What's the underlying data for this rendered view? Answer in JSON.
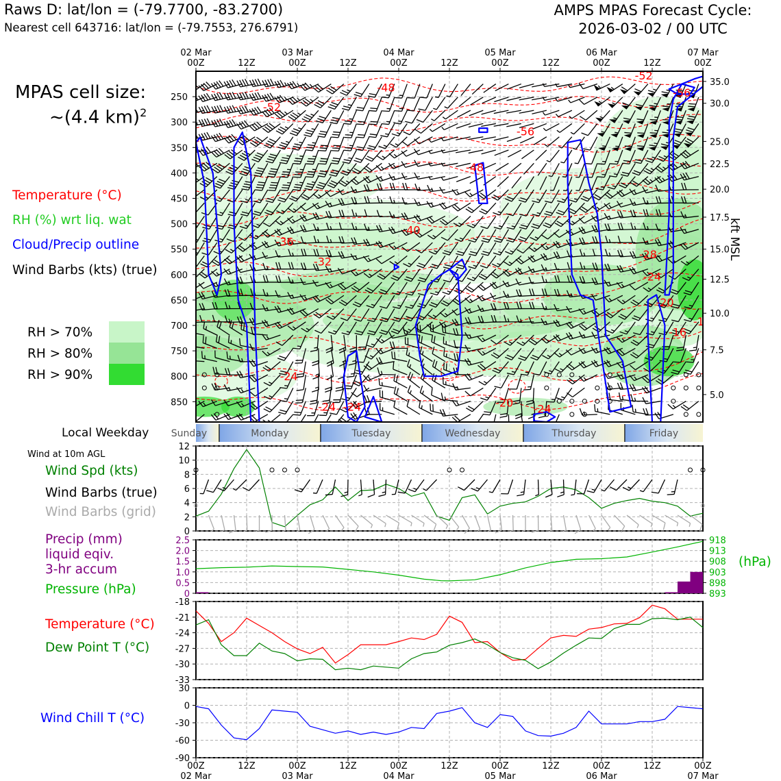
{
  "header": {
    "left_line1": "Raws D: lat/lon = (-79.7700, -83.2700)",
    "left_line2": "Nearest cell 643716: lat/lon = (-79.7553, 276.6791)",
    "right_line1": "AMPS MPAS Forecast Cycle:",
    "right_line2": "2026-03-02 / 00 UTC"
  },
  "cell_size": {
    "line1": "MPAS cell size:",
    "line2": "~(4.4 km)",
    "sup": "2"
  },
  "legend": {
    "temperature": "Temperature (°C)",
    "rh": "RH (%) wrt liq. wat",
    "cloud": "Cloud/Precip outline",
    "barbs": "Wind Barbs (kts) (true)",
    "rh70": "RH > 70%",
    "rh80": "RH > 80%",
    "rh90": "RH > 90%"
  },
  "colors": {
    "rh70": "#c8f5c8",
    "rh80": "#96e496",
    "rh90": "#32dc32",
    "temp": "#ff0000",
    "cloud": "#0000ff",
    "dew": "#008000",
    "precip": "#800080",
    "pressure": "#00b400",
    "chill": "#0000ff",
    "grey_barb": "#aaaaaa"
  },
  "time_axis": {
    "top_ticks": [
      {
        "date": "02 Mar",
        "hour": "00Z"
      },
      {
        "date": "",
        "hour": "12Z"
      },
      {
        "date": "03 Mar",
        "hour": "00Z"
      },
      {
        "date": "",
        "hour": "12Z"
      },
      {
        "date": "04 Mar",
        "hour": "00Z"
      },
      {
        "date": "",
        "hour": "12Z"
      },
      {
        "date": "05 Mar",
        "hour": "00Z"
      },
      {
        "date": "",
        "hour": "12Z"
      },
      {
        "date": "06 Mar",
        "hour": "00Z"
      },
      {
        "date": "",
        "hour": "12Z"
      },
      {
        "date": "07 Mar",
        "hour": "00Z"
      }
    ],
    "hours_total": 120
  },
  "cross_section": {
    "pressure_ticks": [
      250,
      300,
      350,
      400,
      450,
      500,
      550,
      600,
      650,
      700,
      750,
      800,
      850
    ],
    "altitude_ticks": [
      "35.0",
      "30.0",
      "25.0",
      "22.5",
      "20.0",
      "17.5",
      "15.0",
      "12.5",
      "10.0",
      "7.5",
      "5.0"
    ],
    "altitude_pressures": [
      220,
      263,
      338,
      382,
      432,
      487,
      550,
      609,
      676,
      748,
      836
    ],
    "altitude_label": "kft MSL",
    "pressure_range": [
      200,
      890
    ],
    "temp_labels": [
      {
        "t": 45,
        "p": 240,
        "label": "-48"
      },
      {
        "t": 18,
        "p": 278,
        "label": "-52"
      },
      {
        "t": 78,
        "p": 326,
        "label": "-56"
      },
      {
        "t": 66,
        "p": 397,
        "label": "-48"
      },
      {
        "t": 51,
        "p": 520,
        "label": "-40"
      },
      {
        "t": 21,
        "p": 543,
        "label": "-36"
      },
      {
        "t": 30,
        "p": 582,
        "label": "-32"
      },
      {
        "t": 106,
        "p": 216,
        "label": "-52"
      },
      {
        "t": 115,
        "p": 250,
        "label": "-56"
      },
      {
        "t": 107,
        "p": 568,
        "label": "-28"
      },
      {
        "t": 108,
        "p": 612,
        "label": "-24"
      },
      {
        "t": 111,
        "p": 662,
        "label": "-20"
      },
      {
        "t": 114,
        "p": 721,
        "label": "-16"
      },
      {
        "t": 119,
        "p": 700,
        "label": "-1"
      },
      {
        "t": 22,
        "p": 808,
        "label": "-24"
      },
      {
        "t": 31,
        "p": 868,
        "label": "-24"
      },
      {
        "t": 37,
        "p": 868,
        "label": "-24"
      },
      {
        "t": 73,
        "p": 860,
        "label": "-20"
      },
      {
        "t": 82,
        "p": 872,
        "label": "-24"
      }
    ]
  },
  "weekday_bar": {
    "label": "Local Weekday",
    "days": [
      {
        "name": "Sunday",
        "start": 0,
        "end": 5.5
      },
      {
        "name": "Monday",
        "start": 5.5,
        "end": 29.5
      },
      {
        "name": "Tuesday",
        "start": 29.5,
        "end": 53.5
      },
      {
        "name": "Wednesday",
        "start": 53.5,
        "end": 77.5
      },
      {
        "name": "Thursday",
        "start": 77.5,
        "end": 101.5
      },
      {
        "name": "Friday",
        "start": 101.5,
        "end": 120
      }
    ]
  },
  "wind_panel": {
    "title": "Wind at 10m AGL",
    "labels": [
      "Wind Spd (kts)",
      "Wind Barbs (true)",
      "Wind Barbs (grid)"
    ]
  },
  "precip_panel": {
    "labels": [
      "Precip (mm)",
      "liquid eqiv.",
      "3-hr accum",
      "Pressure (hPa)"
    ],
    "right_label": "(hPa)"
  },
  "temp_panel": {
    "labels": [
      "Temperature (°C)",
      "Dew Point T (°C)"
    ]
  },
  "chill_panel": {
    "label": "Wind Chill T (°C)"
  },
  "chart_data": [
    {
      "type": "line",
      "title": "Wind Spd (kts)",
      "x_hours": [
        0,
        3,
        6,
        9,
        12,
        15,
        18,
        21,
        24,
        27,
        30,
        33,
        36,
        39,
        42,
        45,
        48,
        51,
        54,
        57,
        60,
        63,
        66,
        69,
        72,
        75,
        78,
        81,
        84,
        87,
        90,
        93,
        96,
        99,
        102,
        105,
        108,
        111,
        114,
        117,
        120
      ],
      "series": [
        {
          "name": "Wind Spd (kts)",
          "values": [
            2.1,
            2.8,
            5.2,
            8.8,
            11.5,
            8.9,
            1.2,
            0.6,
            2.2,
            3.7,
            4.4,
            6.2,
            4.3,
            5.7,
            5.8,
            6.6,
            6.0,
            4.9,
            5.4,
            2.1,
            1.5,
            4.7,
            5.1,
            2.4,
            3.5,
            3.9,
            4.1,
            4.9,
            6.0,
            6.2,
            5.8,
            4.7,
            3.2,
            3.9,
            4.3,
            4.6,
            4.2,
            4.0,
            3.5,
            2.1,
            2.5
          ]
        }
      ],
      "ylim": [
        0,
        12
      ],
      "yticks": [
        0,
        2,
        4,
        6,
        8,
        10,
        12
      ],
      "calm_hours": [
        0,
        18,
        21,
        24,
        60,
        63,
        117,
        120
      ],
      "barb_hours": [
        3,
        6,
        9,
        12,
        15,
        27,
        30,
        33,
        36,
        39,
        42,
        45,
        48,
        51,
        54,
        57,
        66,
        69,
        72,
        75,
        78,
        81,
        84,
        87,
        90,
        93,
        96,
        99,
        102,
        105,
        108,
        111,
        114
      ]
    },
    {
      "type": "bar",
      "title": "Precip (mm) liquid eqiv. 3-hr accum",
      "x_hours": [
        0,
        111,
        114,
        117
      ],
      "values": [
        0.05,
        0.05,
        0.55,
        1.0
      ],
      "ylim": [
        0,
        2.5
      ],
      "yticks": [
        "0",
        "0.5",
        "1.0",
        "1.5",
        "2.0",
        "2.5"
      ]
    },
    {
      "type": "line",
      "title": "Pressure (hPa)",
      "x_hours": [
        0,
        6,
        12,
        18,
        24,
        30,
        36,
        42,
        48,
        54,
        58,
        60,
        66,
        72,
        78,
        84,
        90,
        96,
        102,
        108,
        114,
        120
      ],
      "series": [
        {
          "name": "Pressure (hPa)",
          "values": [
            904.5,
            905.0,
            905.2,
            905.8,
            905.5,
            905.3,
            904.2,
            903.0,
            901.5,
            899.6,
            898.9,
            898.8,
            899.3,
            901.7,
            904.9,
            907.4,
            908.9,
            909.2,
            910.0,
            912.3,
            914.7,
            917.3
          ]
        }
      ],
      "ylim": [
        893,
        918
      ],
      "yticks": [
        "918",
        "913",
        "908",
        "903",
        "898",
        "893"
      ]
    },
    {
      "type": "line",
      "title": "Temperature / Dew Point T (°C)",
      "x_hours": [
        0,
        3,
        6,
        9,
        12,
        15,
        18,
        21,
        24,
        27,
        30,
        33,
        36,
        39,
        42,
        45,
        48,
        51,
        54,
        57,
        60,
        63,
        66,
        69,
        72,
        75,
        78,
        81,
        84,
        87,
        90,
        93,
        96,
        99,
        102,
        105,
        108,
        111,
        114,
        117,
        120
      ],
      "series": [
        {
          "name": "Temperature (°C)",
          "values": [
            -19.8,
            -22.2,
            -25.7,
            -24.0,
            -21.2,
            -22.6,
            -24.0,
            -25.7,
            -27.1,
            -28.0,
            -26.8,
            -29.8,
            -28.2,
            -26.3,
            -26.3,
            -26.3,
            -25.7,
            -25.0,
            -25.3,
            -24.3,
            -20.8,
            -22.0,
            -25.9,
            -25.7,
            -27.8,
            -29.3,
            -29.1,
            -27.0,
            -25.0,
            -24.5,
            -24.7,
            -23.3,
            -23.0,
            -22.3,
            -22.2,
            -21.1,
            -18.7,
            -19.4,
            -21.4,
            -21.4,
            -21.4
          ]
        },
        {
          "name": "Dew Point T (°C)",
          "values": [
            -22.5,
            -21.5,
            -26.3,
            -28.4,
            -28.4,
            -26.0,
            -27.5,
            -28.0,
            -29.4,
            -29.0,
            -29.1,
            -31.1,
            -30.8,
            -31.1,
            -30.4,
            -30.6,
            -30.8,
            -29.0,
            -28.0,
            -27.7,
            -26.4,
            -25.9,
            -25.2,
            -26.3,
            -27.8,
            -28.8,
            -29.3,
            -30.9,
            -29.6,
            -27.9,
            -26.4,
            -25.0,
            -25.1,
            -23.2,
            -22.4,
            -22.4,
            -21.3,
            -21.2,
            -21.5,
            -21.0,
            -23.0
          ]
        }
      ],
      "ylim": [
        -33,
        -18
      ],
      "yticks": [
        "-18",
        "-21",
        "-24",
        "-27",
        "-30",
        "-33"
      ]
    },
    {
      "type": "line",
      "title": "Wind Chill T (°C)",
      "x_hours": [
        0,
        3,
        6,
        9,
        12,
        15,
        18,
        21,
        24,
        27,
        30,
        33,
        36,
        39,
        42,
        45,
        48,
        51,
        54,
        57,
        60,
        63,
        66,
        69,
        72,
        75,
        78,
        81,
        84,
        87,
        90,
        93,
        96,
        99,
        102,
        105,
        108,
        111,
        114,
        117,
        120
      ],
      "series": [
        {
          "name": "Wind Chill T (°C)",
          "values": [
            -2,
            -6,
            -34,
            -56,
            -59,
            -40,
            -8,
            -10,
            -12,
            -36,
            -42,
            -48,
            -44,
            -50,
            -46,
            -50,
            -46,
            -38,
            -40,
            -14,
            -10,
            -4,
            -30,
            -38,
            -16,
            -19,
            -44,
            -52,
            -53,
            -48,
            -38,
            -10,
            -32,
            -32,
            -32,
            -28,
            -28,
            -24,
            -2,
            -4,
            -6
          ]
        }
      ],
      "ylim": [
        -90,
        30
      ],
      "yticks": [
        "30",
        "0",
        "-30",
        "-60",
        "-90"
      ]
    }
  ]
}
